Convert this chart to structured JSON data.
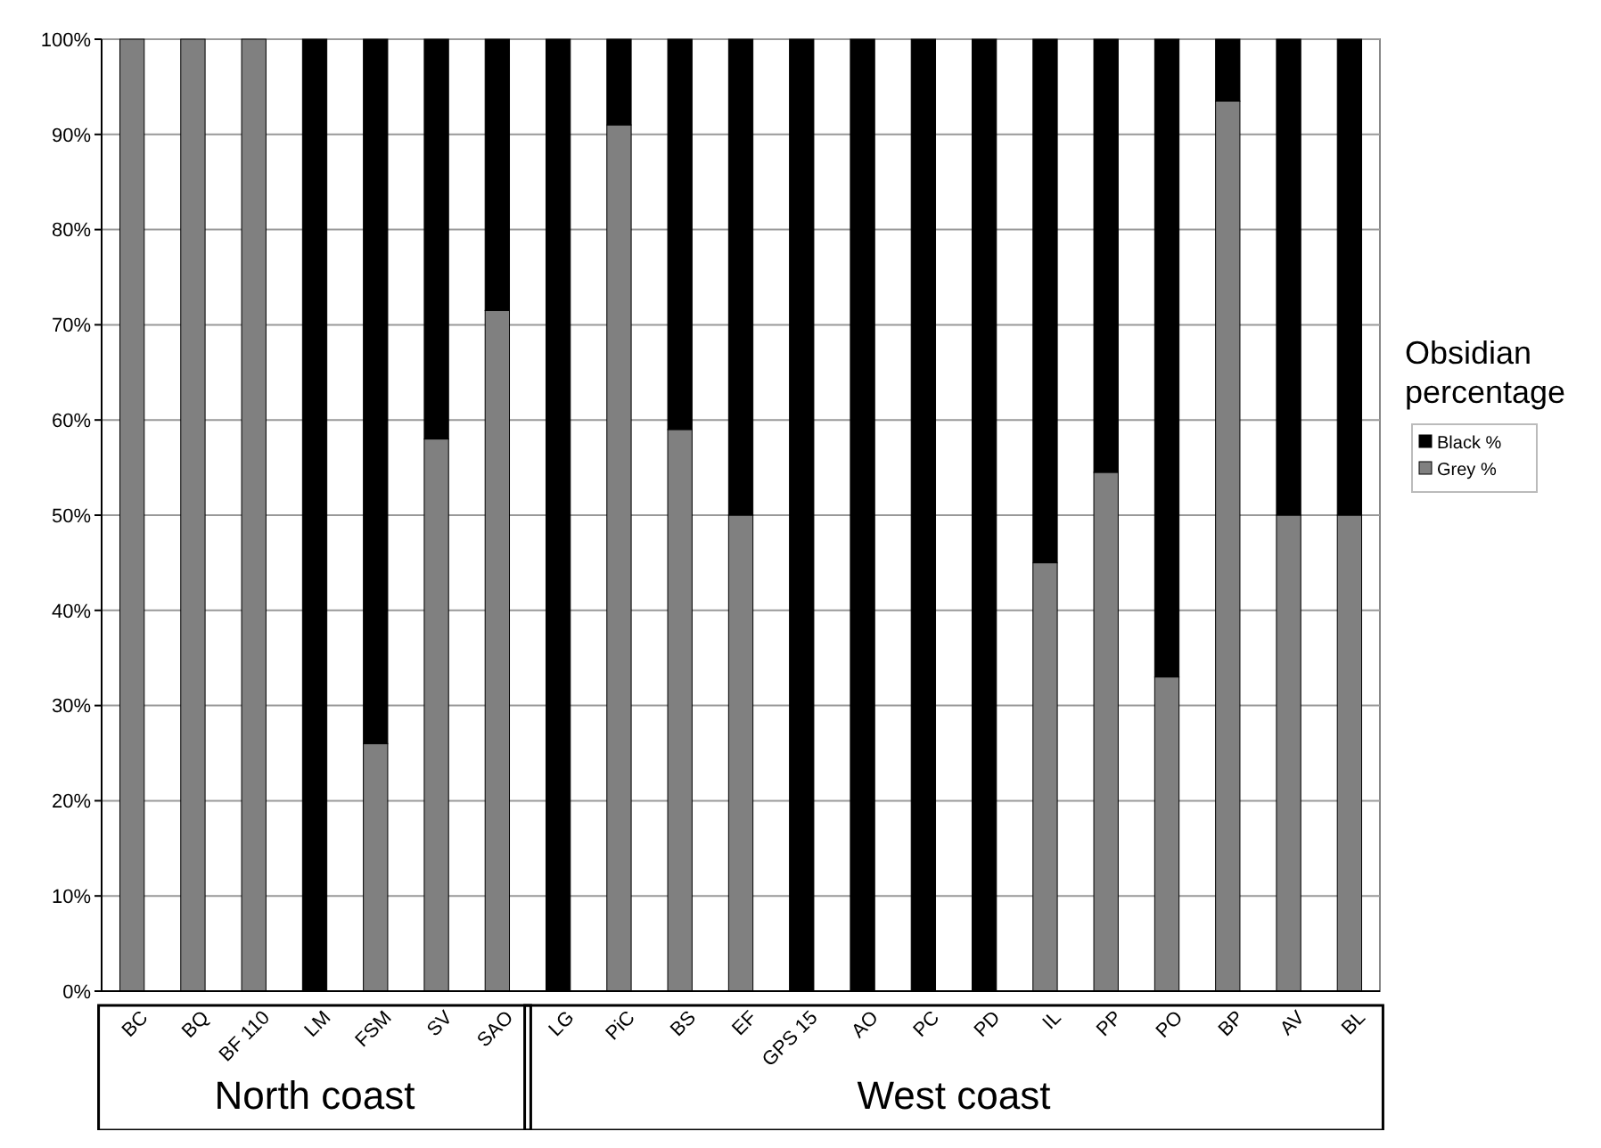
{
  "chart_data": {
    "type": "bar",
    "stacked": true,
    "legend_title": "Obsidian percentage",
    "legend": "right",
    "categories": [
      "BC",
      "BQ",
      "BF 110",
      "LM",
      "FSM",
      "SV",
      "SAO",
      "LG",
      "PiC",
      "BS",
      "EF",
      "GPS 15",
      "AO",
      "PC",
      "PD",
      "IL",
      "PP",
      "PO",
      "BP",
      "AV",
      "BL"
    ],
    "series": [
      {
        "name": "Grey %",
        "color": "#808080",
        "values": [
          100,
          100,
          100,
          0,
          26,
          58,
          71.5,
          0,
          91,
          59,
          50,
          0,
          0,
          0,
          0,
          45,
          54.5,
          33,
          93.5,
          50,
          50
        ]
      },
      {
        "name": "Black %",
        "color": "#000000",
        "values": [
          0,
          0,
          0,
          100,
          74,
          42,
          28.5,
          100,
          9,
          41,
          50,
          100,
          100,
          100,
          100,
          55,
          45.5,
          67,
          6.5,
          50,
          50
        ]
      }
    ],
    "ylim": [
      0,
      100
    ],
    "yticks": [
      {
        "value": 0,
        "label": "0%"
      },
      {
        "value": 10,
        "label": "10%"
      },
      {
        "value": 20,
        "label": "20%"
      },
      {
        "value": 30,
        "label": "30%"
      },
      {
        "value": 40,
        "label": "40%"
      },
      {
        "value": 50,
        "label": "50%"
      },
      {
        "value": 60,
        "label": "60%"
      },
      {
        "value": 70,
        "label": "70%"
      },
      {
        "value": 80,
        "label": "80%"
      },
      {
        "value": 90,
        "label": "90%"
      },
      {
        "value": 100,
        "label": "100%"
      }
    ],
    "grid": "y",
    "annotations": [
      "North coast",
      "West coast"
    ]
  }
}
